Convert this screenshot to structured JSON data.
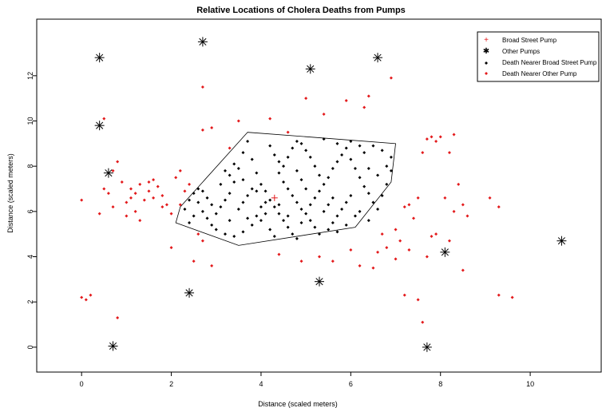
{
  "chart_data": {
    "type": "scatter",
    "title": "Relative Locations of Cholera Deaths from Pumps",
    "xlabel": "Distance (scaled meters)",
    "ylabel": "Distance (scaled meters)",
    "xlim": [
      -1,
      11.6
    ],
    "ylim": [
      -1.1,
      14.5
    ],
    "xticks": [
      0,
      2,
      4,
      6,
      8,
      10
    ],
    "yticks": [
      0,
      2,
      4,
      6,
      8,
      10,
      12
    ],
    "grid": false,
    "legend_position": "top-right",
    "legend": [
      {
        "label": "Broad Street Pump",
        "marker": "plus",
        "color": "#e31a1c"
      },
      {
        "label": "Other Pumps",
        "marker": "asterisk",
        "color": "#000000"
      },
      {
        "label": "Death Nearer Broad Street Pump",
        "marker": "diamond",
        "color": "#000000"
      },
      {
        "label": "Death Nearer Other Pump",
        "marker": "diamond",
        "color": "#e31a1c"
      }
    ],
    "series": [
      {
        "name": "Broad Street Pump",
        "marker": "plus",
        "color": "#e31a1c",
        "points": [
          [
            4.3,
            6.6
          ]
        ]
      },
      {
        "name": "Other Pumps",
        "marker": "asterisk",
        "color": "#000000",
        "points": [
          [
            0.4,
            12.8
          ],
          [
            2.7,
            13.5
          ],
          [
            5.1,
            12.3
          ],
          [
            6.6,
            12.8
          ],
          [
            0.4,
            9.8
          ],
          [
            0.6,
            7.7
          ],
          [
            10.7,
            4.7
          ],
          [
            8.1,
            4.2
          ],
          [
            5.3,
            2.9
          ],
          [
            2.4,
            2.4
          ],
          [
            0.7,
            0.05
          ],
          [
            7.7,
            0.0
          ]
        ]
      },
      {
        "name": "Death Nearer Broad Street Pump",
        "marker": "diamond",
        "color": "#000000",
        "hull": [
          [
            3.7,
            9.5
          ],
          [
            7.0,
            9.0
          ],
          [
            6.9,
            7.3
          ],
          [
            6.1,
            5.3
          ],
          [
            3.5,
            4.5
          ],
          [
            2.1,
            5.5
          ],
          [
            2.2,
            6.2
          ]
        ],
        "points": [
          [
            2.3,
            6.1
          ],
          [
            2.4,
            6.5
          ],
          [
            2.5,
            6.8
          ],
          [
            2.6,
            7.0
          ],
          [
            2.7,
            6.9
          ],
          [
            2.8,
            6.6
          ],
          [
            2.9,
            6.3
          ],
          [
            2.7,
            6.0
          ],
          [
            2.8,
            5.7
          ],
          [
            3.0,
            5.9
          ],
          [
            3.1,
            6.2
          ],
          [
            3.2,
            6.5
          ],
          [
            3.3,
            6.8
          ],
          [
            3.1,
            7.2
          ],
          [
            3.3,
            7.6
          ],
          [
            3.4,
            7.3
          ],
          [
            3.5,
            7.9
          ],
          [
            3.6,
            8.6
          ],
          [
            3.7,
            9.1
          ],
          [
            3.8,
            8.3
          ],
          [
            3.9,
            7.7
          ],
          [
            4.0,
            7.2
          ],
          [
            4.1,
            6.9
          ],
          [
            4.2,
            6.5
          ],
          [
            4.0,
            6.2
          ],
          [
            3.9,
            5.8
          ],
          [
            3.8,
            5.4
          ],
          [
            3.6,
            5.1
          ],
          [
            3.4,
            4.9
          ],
          [
            3.2,
            5.0
          ],
          [
            3.0,
            5.2
          ],
          [
            2.9,
            5.4
          ],
          [
            3.5,
            6.1
          ],
          [
            3.6,
            6.4
          ],
          [
            3.7,
            6.7
          ],
          [
            3.9,
            6.9
          ],
          [
            4.1,
            6.4
          ],
          [
            4.3,
            6.2
          ],
          [
            4.4,
            5.9
          ],
          [
            4.5,
            5.6
          ],
          [
            4.6,
            5.3
          ],
          [
            4.7,
            5.0
          ],
          [
            4.8,
            4.8
          ],
          [
            4.9,
            5.5
          ],
          [
            5.0,
            5.9
          ],
          [
            5.1,
            6.3
          ],
          [
            5.2,
            6.6
          ],
          [
            5.3,
            6.9
          ],
          [
            5.4,
            7.2
          ],
          [
            5.5,
            7.5
          ],
          [
            5.6,
            7.9
          ],
          [
            5.7,
            8.2
          ],
          [
            5.8,
            8.5
          ],
          [
            5.9,
            8.8
          ],
          [
            6.0,
            8.3
          ],
          [
            6.1,
            7.9
          ],
          [
            6.2,
            7.5
          ],
          [
            6.3,
            7.1
          ],
          [
            6.4,
            6.8
          ],
          [
            6.5,
            6.4
          ],
          [
            6.6,
            6.1
          ],
          [
            6.7,
            6.7
          ],
          [
            6.8,
            7.2
          ],
          [
            6.9,
            7.8
          ],
          [
            6.9,
            8.4
          ],
          [
            6.7,
            8.7
          ],
          [
            6.5,
            8.9
          ],
          [
            6.3,
            8.6
          ],
          [
            4.4,
            7.7
          ],
          [
            4.5,
            8.0
          ],
          [
            4.6,
            8.4
          ],
          [
            4.7,
            8.8
          ],
          [
            4.8,
            9.1
          ],
          [
            4.2,
            8.9
          ],
          [
            4.3,
            8.5
          ],
          [
            4.4,
            8.2
          ],
          [
            4.5,
            7.3
          ],
          [
            4.6,
            7.0
          ],
          [
            4.7,
            6.7
          ],
          [
            4.8,
            6.4
          ],
          [
            4.9,
            6.1
          ],
          [
            5.1,
            5.6
          ],
          [
            5.2,
            5.3
          ],
          [
            5.3,
            5.0
          ],
          [
            5.5,
            5.2
          ],
          [
            5.6,
            5.5
          ],
          [
            5.7,
            5.8
          ],
          [
            5.8,
            6.1
          ],
          [
            5.9,
            6.4
          ],
          [
            6.0,
            6.7
          ],
          [
            5.4,
            6.0
          ],
          [
            5.5,
            6.3
          ],
          [
            5.6,
            6.6
          ],
          [
            5.3,
            7.6
          ],
          [
            5.2,
            8.0
          ],
          [
            5.1,
            8.4
          ],
          [
            5.0,
            8.7
          ],
          [
            4.9,
            9.0
          ],
          [
            5.4,
            9.2
          ],
          [
            5.7,
            9.0
          ],
          [
            6.0,
            9.1
          ],
          [
            6.2,
            8.9
          ],
          [
            3.4,
            8.1
          ],
          [
            3.2,
            7.8
          ],
          [
            3.6,
            7.4
          ],
          [
            3.8,
            7.0
          ],
          [
            4.0,
            5.6
          ],
          [
            4.2,
            5.2
          ],
          [
            4.3,
            4.9
          ],
          [
            3.7,
            5.7
          ],
          [
            3.3,
            5.6
          ],
          [
            2.5,
            5.8
          ],
          [
            2.4,
            5.5
          ],
          [
            2.6,
            6.4
          ],
          [
            6.2,
            6.0
          ],
          [
            6.4,
            5.6
          ],
          [
            6.1,
            5.8
          ],
          [
            5.9,
            5.4
          ],
          [
            5.7,
            5.1
          ],
          [
            6.6,
            7.6
          ],
          [
            6.8,
            8.0
          ],
          [
            6.4,
            7.9
          ],
          [
            5.0,
            7.0
          ],
          [
            4.9,
            7.4
          ],
          [
            4.8,
            7.8
          ],
          [
            4.6,
            5.8
          ],
          [
            4.4,
            6.3
          ],
          [
            4.1,
            5.9
          ]
        ]
      },
      {
        "name": "Death Nearer Other Pump",
        "marker": "diamond",
        "color": "#e31a1c",
        "points": [
          [
            0.0,
            6.5
          ],
          [
            0.0,
            2.2
          ],
          [
            0.1,
            2.1
          ],
          [
            0.2,
            2.3
          ],
          [
            0.4,
            5.9
          ],
          [
            0.5,
            7.0
          ],
          [
            0.5,
            10.1
          ],
          [
            0.6,
            6.8
          ],
          [
            0.7,
            6.2
          ],
          [
            0.8,
            1.3
          ],
          [
            0.8,
            8.2
          ],
          [
            0.9,
            7.3
          ],
          [
            1.0,
            5.8
          ],
          [
            1.0,
            6.4
          ],
          [
            1.1,
            7.0
          ],
          [
            1.2,
            6.0
          ],
          [
            1.3,
            5.6
          ],
          [
            1.4,
            6.5
          ],
          [
            1.5,
            6.9
          ],
          [
            1.6,
            7.4
          ],
          [
            1.7,
            7.1
          ],
          [
            1.8,
            6.7
          ],
          [
            1.9,
            6.3
          ],
          [
            2.0,
            5.9
          ],
          [
            2.0,
            4.4
          ],
          [
            2.1,
            7.5
          ],
          [
            2.2,
            7.8
          ],
          [
            2.3,
            6.9
          ],
          [
            2.4,
            7.2
          ],
          [
            2.5,
            3.8
          ],
          [
            2.6,
            5.0
          ],
          [
            2.7,
            4.7
          ],
          [
            2.7,
            9.6
          ],
          [
            2.7,
            11.5
          ],
          [
            2.9,
            9.7
          ],
          [
            2.9,
            3.6
          ],
          [
            3.3,
            8.8
          ],
          [
            3.5,
            10.0
          ],
          [
            4.2,
            10.1
          ],
          [
            4.4,
            4.1
          ],
          [
            4.6,
            9.5
          ],
          [
            5.0,
            11.0
          ],
          [
            5.4,
            10.3
          ],
          [
            4.9,
            3.8
          ],
          [
            5.3,
            4.0
          ],
          [
            5.6,
            3.8
          ],
          [
            5.9,
            10.9
          ],
          [
            6.0,
            4.3
          ],
          [
            6.2,
            3.6
          ],
          [
            6.3,
            10.6
          ],
          [
            6.4,
            11.1
          ],
          [
            6.6,
            4.2
          ],
          [
            6.7,
            5.0
          ],
          [
            6.9,
            11.9
          ],
          [
            7.0,
            5.2
          ],
          [
            7.1,
            4.7
          ],
          [
            7.2,
            6.2
          ],
          [
            7.3,
            6.3
          ],
          [
            7.4,
            5.7
          ],
          [
            7.5,
            6.6
          ],
          [
            7.6,
            8.6
          ],
          [
            7.7,
            9.2
          ],
          [
            7.8,
            9.3
          ],
          [
            7.9,
            9.1
          ],
          [
            8.0,
            9.3
          ],
          [
            8.2,
            8.6
          ],
          [
            8.3,
            9.4
          ],
          [
            8.4,
            7.2
          ],
          [
            8.5,
            6.3
          ],
          [
            8.6,
            5.8
          ],
          [
            7.9,
            5.0
          ],
          [
            7.8,
            4.9
          ],
          [
            8.1,
            6.6
          ],
          [
            8.2,
            4.7
          ],
          [
            8.5,
            3.4
          ],
          [
            9.1,
            6.6
          ],
          [
            9.3,
            6.2
          ],
          [
            9.3,
            2.3
          ],
          [
            9.6,
            2.2
          ],
          [
            7.6,
            1.1
          ],
          [
            7.5,
            2.1
          ],
          [
            7.2,
            2.3
          ],
          [
            7.3,
            4.3
          ],
          [
            7.0,
            3.9
          ],
          [
            6.8,
            4.4
          ],
          [
            6.5,
            3.5
          ],
          [
            7.7,
            4.0
          ],
          [
            8.3,
            6.0
          ],
          [
            1.1,
            6.6
          ],
          [
            1.2,
            6.8
          ],
          [
            1.3,
            7.2
          ],
          [
            1.5,
            7.3
          ],
          [
            1.6,
            6.6
          ],
          [
            1.8,
            6.2
          ],
          [
            2.2,
            6.3
          ],
          [
            0.7,
            7.8
          ]
        ]
      }
    ]
  }
}
